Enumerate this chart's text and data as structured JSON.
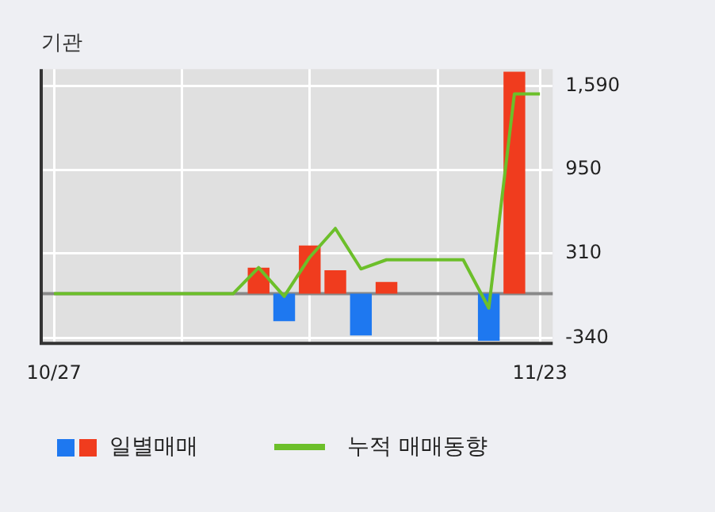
{
  "chart_data": {
    "type": "bar",
    "title": "기관",
    "categories": [
      "10/27",
      null,
      null,
      null,
      null,
      null,
      null,
      null,
      null,
      null,
      null,
      null,
      null,
      null,
      null,
      null,
      null,
      null,
      null,
      "11/23"
    ],
    "ylim": [
      -380,
      1720
    ],
    "yticks": [
      {
        "value": 1590,
        "label": "1,590"
      },
      950,
      310,
      -340
    ],
    "grid": true,
    "legend": "bottom",
    "ref_lines": [
      {
        "axis": "y",
        "value": 0,
        "color": "#888888"
      }
    ],
    "series": [
      {
        "name": "일별매매",
        "values": [
          null,
          null,
          null,
          null,
          null,
          null,
          null,
          null,
          200,
          -210,
          370,
          180,
          -320,
          90,
          null,
          null,
          null,
          -360,
          1700,
          null
        ],
        "colors": [
          "#f03c1e",
          "#f03c1e",
          "#f03c1e",
          "#f03c1e",
          "#f03c1e",
          "#f03c1e",
          "#f03c1e",
          "#f03c1e",
          "#f03c1e",
          "#1e78f0",
          "#f03c1e",
          "#f03c1e",
          "#1e78f0",
          "#f03c1e",
          "#f03c1e",
          "#f03c1e",
          "#f03c1e",
          "#1e78f0",
          "#f03c1e",
          "#f03c1e"
        ]
      },
      {
        "name": "누적 매매동향",
        "type": "line",
        "color": "#6cbf2a",
        "values": [
          0,
          0,
          0,
          0,
          0,
          0,
          0,
          0,
          200,
          -20,
          280,
          500,
          190,
          260,
          260,
          260,
          260,
          -110,
          1530,
          1530
        ]
      }
    ]
  }
}
